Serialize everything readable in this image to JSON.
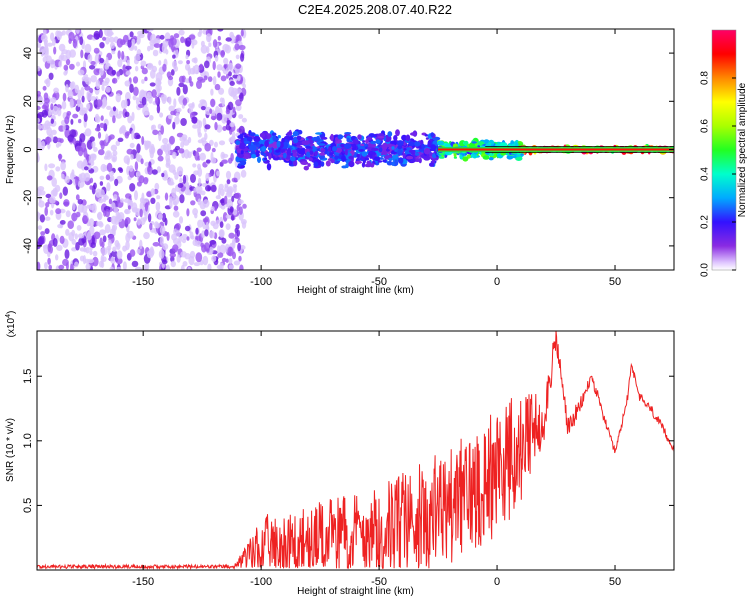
{
  "title": "C2E4.2025.208.07.40.R22",
  "colors": {
    "plot_border": "#000000",
    "snr_line": "#ee2222",
    "background": "#ffffff"
  },
  "chart_data": [
    {
      "type": "heatmap",
      "name": "spectrogram",
      "xlabel": "Height of straight line (km)",
      "ylabel": "Frequency (Hz)",
      "xlim": [
        -195,
        75
      ],
      "ylim": [
        -50,
        50
      ],
      "x_ticks": [
        -150,
        -100,
        -50,
        0,
        50
      ],
      "y_ticks": [
        -40,
        -20,
        0,
        20,
        40
      ],
      "colorbar": {
        "label": "Normalized spectral amplitude",
        "range": [
          0.0,
          1.0
        ],
        "ticks": [
          0.0,
          0.2,
          0.4,
          0.6,
          0.8
        ],
        "tick_labels": [
          "0.0",
          "0.2",
          "0.4",
          "0.6",
          "0.8"
        ],
        "colormap": "rainbow (white-violet-blue-cyan-green-yellow-red-magenta)"
      },
      "regions": [
        {
          "x_range": [
            -195,
            -110
          ],
          "freq_range": [
            -50,
            50
          ],
          "amplitude": 0.1,
          "description": "broadband noise"
        },
        {
          "x_range": [
            -110,
            -25
          ],
          "freq_range": [
            -8,
            8
          ],
          "amplitude": 0.2
        },
        {
          "x_range": [
            -25,
            10
          ],
          "freq_range": [
            -4,
            4
          ],
          "amplitude": 0.4
        },
        {
          "x_range": [
            10,
            75
          ],
          "freq_range": [
            -1,
            1
          ],
          "amplitude": 0.9
        }
      ]
    },
    {
      "type": "line",
      "name": "snr",
      "xlabel": "Height of straight line (km)",
      "ylabel": "SNR (10 * v/v)",
      "multiplier_label": "(x10",
      "multiplier_exp": "4",
      "multiplier_close": ")",
      "xlim": [
        -195,
        75
      ],
      "ylim": [
        0,
        18500
      ],
      "x_ticks": [
        -150,
        -100,
        -50,
        0,
        50
      ],
      "y_ticks": [
        5000,
        10000,
        15000
      ],
      "y_tick_labels": [
        "0.5",
        "1.0",
        "1.5"
      ],
      "series": [
        {
          "x": [
            -195,
            -150,
            -112,
            -105,
            -100,
            -90,
            -80,
            -70,
            -60,
            -50,
            -40,
            -30,
            -20,
            -10,
            -5,
            0,
            5,
            10,
            15,
            20,
            25,
            30,
            35,
            40,
            45,
            50,
            55,
            57,
            60,
            65,
            70,
            75
          ],
          "y": [
            250,
            250,
            250,
            1200,
            1800,
            2000,
            2200,
            2500,
            2800,
            3200,
            3600,
            4200,
            5000,
            6200,
            7000,
            7800,
            8500,
            9000,
            10500,
            12000,
            18000,
            11000,
            12500,
            15000,
            12000,
            9000,
            13000,
            16000,
            13500,
            12500,
            11000,
            9300
          ],
          "noise_amplitude": [
            0,
            0,
            0,
            1200,
            2300,
            2500,
            2700,
            3000,
            3300,
            3700,
            4000,
            4300,
            4600,
            4800,
            5000,
            5000,
            4800,
            4500,
            3500,
            2000,
            1000,
            800,
            600,
            400,
            300,
            300,
            300,
            300,
            300,
            300,
            300,
            200
          ]
        }
      ]
    }
  ]
}
